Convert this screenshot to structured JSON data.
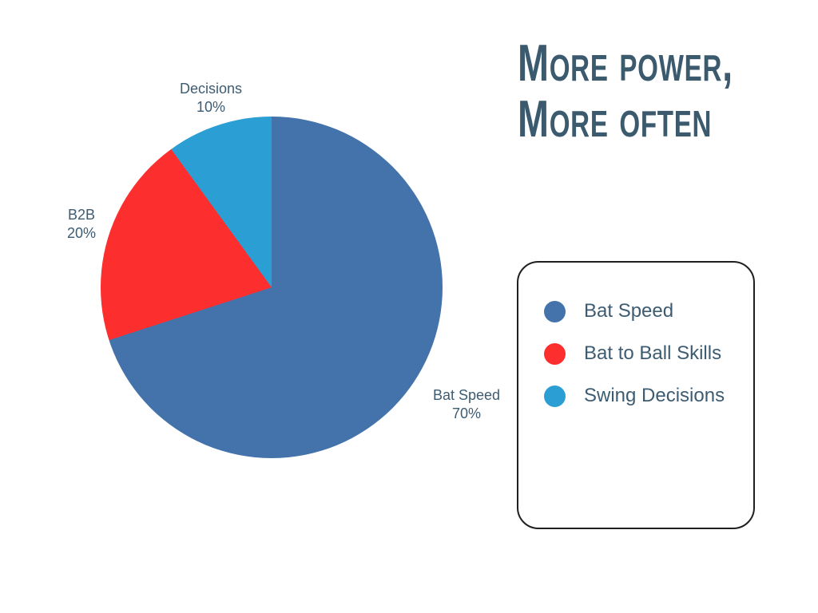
{
  "header": {
    "title_line1": "More power,",
    "title_line2": "More often"
  },
  "chart_data": {
    "type": "pie",
    "title": "More power, More often",
    "categories": [
      "Bat Speed",
      "Bat to Ball Skills",
      "Swing Decisions"
    ],
    "values": [
      70,
      20,
      10
    ],
    "unit": "%",
    "colors": [
      "#4472AB",
      "#FC2E2E",
      "#2B9FD3"
    ],
    "start_angle_deg": 0,
    "direction": "clockwise",
    "slice_labels": [
      {
        "line1": "Bat Speed",
        "line2": "70%"
      },
      {
        "line1": "B2B",
        "line2": "20%"
      },
      {
        "line1": "Decisions",
        "line2": "10%"
      }
    ],
    "legend": {
      "position": "right",
      "entries": [
        {
          "label": "Bat Speed",
          "color": "#4472AB"
        },
        {
          "label": "Bat to Ball Skills",
          "color": "#FC2E2E"
        },
        {
          "label": "Swing Decisions",
          "color": "#2B9FD3"
        }
      ]
    }
  },
  "palette": {
    "background": "#FFFFFF",
    "title_text": "#3B5A6E",
    "label_text": "#3D5C72",
    "legend_border": "#1F1F1F"
  }
}
